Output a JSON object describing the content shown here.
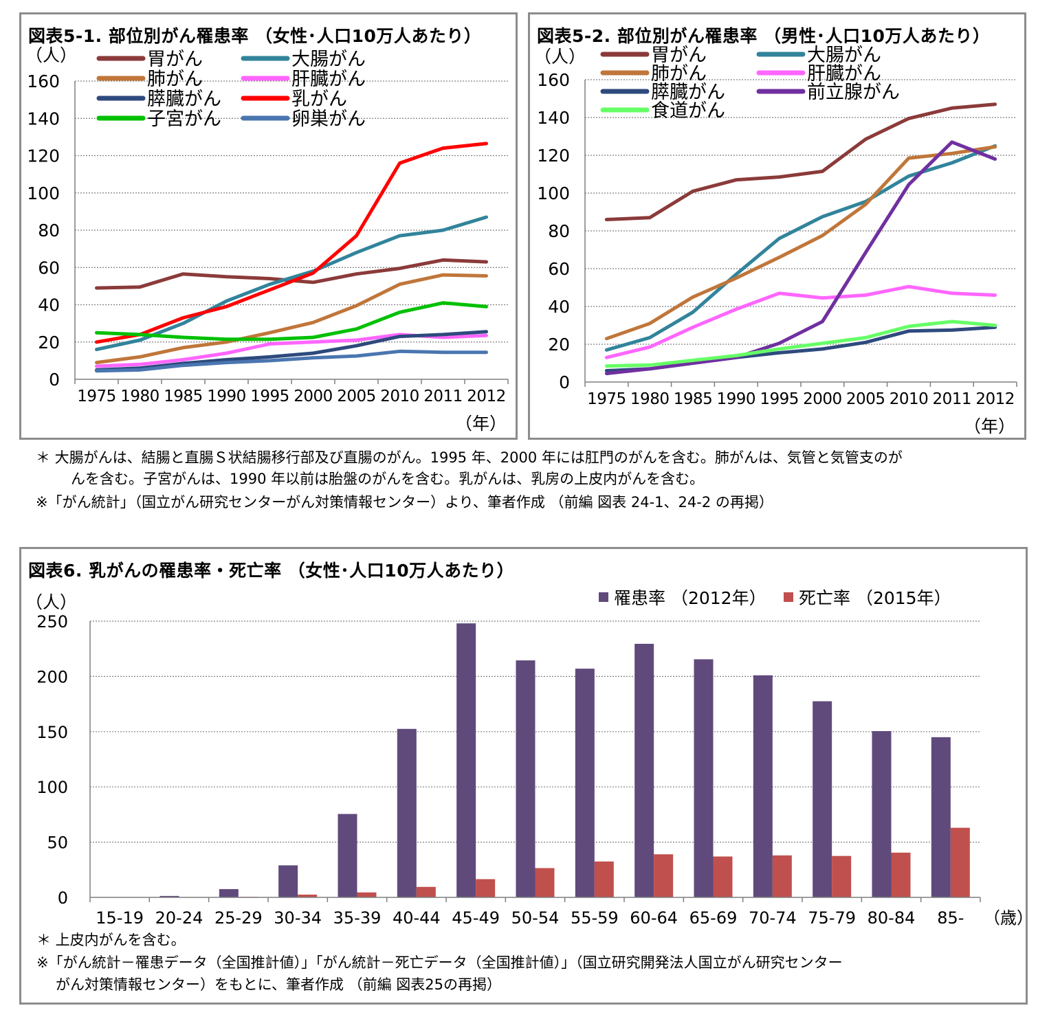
{
  "figure1": {
    "title": "図表5-1.  部位別がん罹患率 （女性･人口10万人あたり）",
    "y_unit": "（人）",
    "x_unit": "（年）"
  },
  "figure2": {
    "title": "図表5-2.  部位別がん罹患率 （男性･人口10万人あたり）",
    "y_unit": "（人）",
    "x_unit": "（年）"
  },
  "figure3": {
    "title": "図表6.  乳がんの罹患率・死亡率 （女性･人口10万人あたり）",
    "y_unit": "（人）",
    "x_unit": "（歳）"
  },
  "notes_top": {
    "line1": "＊  大腸がんは、結腸と直腸Ｓ状結腸移行部及び直腸のがん。1995 年、2000 年には肛門のがんを含む。肺がんは、気管と気管支のが",
    "line2": "んを含む。子宮がんは、1990 年以前は胎盤のがんを含む。乳がんは、乳房の上皮内がんを含む。",
    "line3": "※「がん統計」（国立がん研究センターがん対策情報センター）より、筆者作成  （前編  図表 24-1、24-2 の再掲）"
  },
  "notes_bottom": {
    "line1": "＊ 上皮内がんを含む。",
    "line2": "※「がん統計－罹患データ（全国推計値）」「がん統計－死亡データ（全国推計値）」（国立研究開発法人国立がん研究センター",
    "line3": "がん対策情報センター）をもとに、筆者作成 （前編 図表25の再掲）"
  },
  "chart_data": [
    {
      "type": "line",
      "title": "図表5-1.  部位別がん罹患率 （女性･人口10万人あたり）",
      "ylabel": "（人）",
      "xlabel": "（年）",
      "ylim": [
        0,
        160
      ],
      "yticks": [
        0,
        20,
        40,
        60,
        80,
        100,
        120,
        140,
        160
      ],
      "grid": true,
      "legend": "top-left",
      "categories": [
        "1975",
        "1980",
        "1985",
        "1990",
        "1995",
        "2000",
        "2005",
        "2010",
        "2011",
        "2012"
      ],
      "series": [
        {
          "name": "胃がん",
          "color": "#8b3a3a",
          "values": [
            49,
            49.5,
            56.5,
            55,
            54,
            52,
            56.5,
            59.5,
            64,
            63
          ]
        },
        {
          "name": "大腸がん",
          "color": "#31849b",
          "values": [
            16,
            21,
            30,
            42,
            51,
            58,
            68,
            77,
            80,
            87
          ]
        },
        {
          "name": "肺がん",
          "color": "#c0763a",
          "values": [
            9,
            12,
            17,
            20,
            25,
            30.5,
            39.5,
            51,
            56,
            55.5
          ]
        },
        {
          "name": "肝臓がん",
          "color": "#ff66ff",
          "values": [
            7,
            8,
            10.5,
            14,
            19,
            20,
            21,
            24,
            22.5,
            23.5
          ]
        },
        {
          "name": "膵臓がん",
          "color": "#2e4a7d",
          "values": [
            5,
            6,
            8.5,
            10.5,
            12,
            14,
            18,
            23,
            24,
            25.5
          ]
        },
        {
          "name": "乳がん",
          "color": "#ff0000",
          "values": [
            20,
            24,
            33,
            39,
            48,
            57,
            77,
            116,
            124,
            126.5
          ]
        },
        {
          "name": "子宮がん",
          "color": "#00c000",
          "values": [
            25,
            24,
            22.5,
            21.5,
            21.5,
            22.5,
            27,
            36,
            41,
            39
          ]
        },
        {
          "name": "卵巣がん",
          "color": "#4a76b0",
          "values": [
            4.5,
            5,
            7.5,
            9,
            10,
            11.5,
            12.5,
            15,
            14.5,
            14.5
          ]
        }
      ]
    },
    {
      "type": "line",
      "title": "図表5-2.  部位別がん罹患率 （男性･人口10万人あたり）",
      "ylabel": "（人）",
      "xlabel": "（年）",
      "ylim": [
        0,
        160
      ],
      "yticks": [
        0,
        20,
        40,
        60,
        80,
        100,
        120,
        140,
        160
      ],
      "grid": true,
      "legend": "top-left",
      "categories": [
        "1975",
        "1980",
        "1985",
        "1990",
        "1995",
        "2000",
        "2005",
        "2010",
        "2011",
        "2012"
      ],
      "series": [
        {
          "name": "胃がん",
          "color": "#8b3a3a",
          "values": [
            86,
            87,
            101,
            107,
            108.5,
            111.5,
            128.5,
            139.5,
            145,
            147
          ]
        },
        {
          "name": "大腸がん",
          "color": "#31849b",
          "values": [
            17,
            23.5,
            37,
            57,
            76,
            87.5,
            95.5,
            109,
            116,
            125
          ]
        },
        {
          "name": "肺がん",
          "color": "#c0763a",
          "values": [
            23,
            31,
            45,
            55,
            66,
            77.5,
            94,
            118.5,
            121,
            124.5
          ]
        },
        {
          "name": "肝臓がん",
          "color": "#ff66ff",
          "values": [
            13,
            18.5,
            29,
            38.5,
            47,
            44.5,
            46,
            50.5,
            47,
            46
          ]
        },
        {
          "name": "膵臓がん",
          "color": "#2e4a7d",
          "values": [
            6,
            7,
            10,
            13,
            15.5,
            17.5,
            21,
            27,
            27.5,
            29
          ]
        },
        {
          "name": "前立腺がん",
          "color": "#7030a0",
          "values": [
            4.5,
            7,
            10,
            13,
            20.5,
            32,
            68.5,
            104.5,
            127,
            118
          ]
        },
        {
          "name": "食道がん",
          "color": "#66ff66",
          "values": [
            8.5,
            9,
            11.5,
            14,
            17.5,
            20.5,
            23.5,
            29.5,
            32,
            30
          ]
        }
      ]
    },
    {
      "type": "bar",
      "title": "図表6.  乳がんの罹患率・死亡率 （女性･人口10万人あたり）",
      "ylabel": "（人）",
      "xlabel": "（歳）",
      "ylim": [
        0,
        250
      ],
      "yticks": [
        0,
        50,
        100,
        150,
        200,
        250
      ],
      "grid": true,
      "legend": "top-right",
      "categories": [
        "15-19",
        "20-24",
        "25-29",
        "30-34",
        "35-39",
        "40-44",
        "45-49",
        "50-54",
        "55-59",
        "60-64",
        "65-69",
        "70-74",
        "75-79",
        "80-84",
        "85-"
      ],
      "series": [
        {
          "name": "罹患率 （2012年）",
          "color": "#604a7b",
          "values": [
            0.1,
            1.3,
            7.5,
            29,
            75.5,
            152.5,
            248,
            214.5,
            207,
            229.5,
            215.5,
            201,
            177.5,
            150.5,
            145
          ]
        },
        {
          "name": "死亡率 （2015年）",
          "color": "#c0504d",
          "values": [
            0,
            0.1,
            0.5,
            2.5,
            4.5,
            9.5,
            16.5,
            26.5,
            32.5,
            39,
            37,
            38,
            37.5,
            40.5,
            63
          ]
        }
      ]
    }
  ]
}
